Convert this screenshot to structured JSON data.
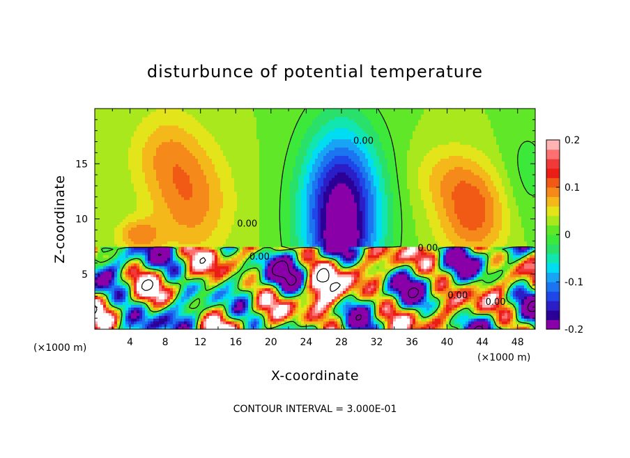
{
  "chart_data": {
    "type": "heatmap",
    "title": "disturbunce of potential temperature",
    "xlabel": "X-coordinate",
    "ylabel": "Z-coordinate",
    "x_unit": "(×1000 m)",
    "x_unit_right": "(×1000 m)",
    "xlim": [
      0,
      50
    ],
    "ylim": [
      0,
      20
    ],
    "x_ticks": [
      4,
      8,
      12,
      16,
      20,
      24,
      28,
      32,
      36,
      40,
      44,
      48
    ],
    "y_ticks": [
      5,
      10,
      15
    ],
    "contour_interval_text": "CONTOUR INTERVAL = 3.000E-01",
    "colorbar": {
      "range": [
        -0.2,
        0.2
      ],
      "tick_labels": [
        "0.2",
        "0.1",
        "0",
        "-0.1",
        "-0.2"
      ],
      "colors": [
        "#8a00a8",
        "#2a0096",
        "#2b1ec7",
        "#1f46e6",
        "#1b74f0",
        "#18a3f4",
        "#00dcf2",
        "#12e6b0",
        "#28e06a",
        "#3ce83a",
        "#60e828",
        "#a8e81c",
        "#e4e41a",
        "#f5b81a",
        "#f58a1a",
        "#f05a14",
        "#ea1e14",
        "#f03a3a",
        "#ff7070",
        "#ffb4b4"
      ]
    },
    "contour_labels": [
      {
        "text": "0.00",
        "x": 30.5,
        "z": 16.8
      },
      {
        "text": "0.00",
        "x": 17.3,
        "z": 9.3
      },
      {
        "text": "0.00",
        "x": 37.8,
        "z": 7.1
      },
      {
        "text": "0.00",
        "x": 18.7,
        "z": 6.3
      },
      {
        "text": "0.00",
        "x": 41.2,
        "z": 2.8
      },
      {
        "text": "0.00",
        "x": 45.5,
        "z": 2.2
      }
    ],
    "fields": {
      "upper_layer_z_min": 7.4,
      "upper_background": 0.02,
      "upper_features": [
        {
          "x": 11,
          "z": 11.5,
          "value": 0.08
        },
        {
          "x": 5,
          "z": 8.5,
          "value": 0.1
        },
        {
          "x": 28,
          "z": 11,
          "value": -0.19
        },
        {
          "x": 43,
          "z": 10.5,
          "value": 0.11
        },
        {
          "x": 40,
          "z": 12.5,
          "value": 0.08
        }
      ],
      "lower_layer_z_max": 7.4,
      "lower_note": "turbulent mixed layer with alternating positive and negative perturbations"
    }
  }
}
